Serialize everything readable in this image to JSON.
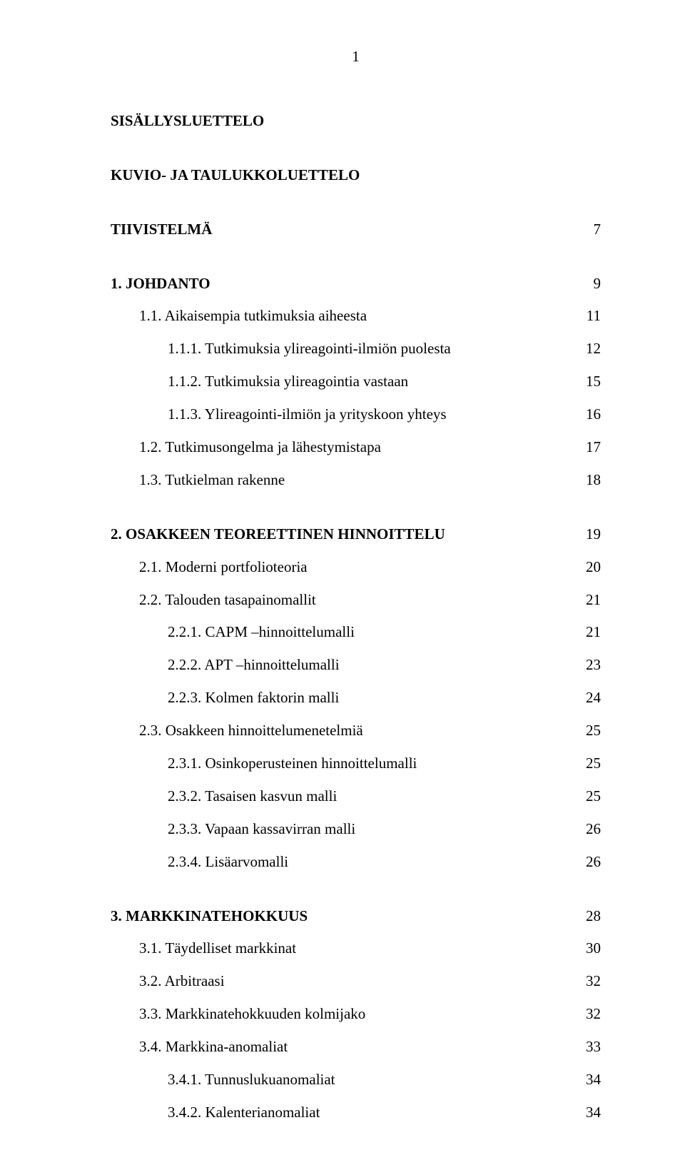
{
  "page_number": "1",
  "headings": {
    "sisallysluettelo": "SISÄLLYSLUETTELO",
    "kuvio": "KUVIO- JA TAULUKKOLUETTELO"
  },
  "tiivistelma": {
    "label": "TIIVISTELMÄ",
    "page": "7"
  },
  "chapters": [
    {
      "label": "1. JOHDANTO",
      "page": "9",
      "bold": true,
      "items": [
        {
          "label": "1.1. Aikaisempia tutkimuksia aiheesta",
          "page": "11",
          "indent": 1
        },
        {
          "label": "1.1.1. Tutkimuksia ylireagointi-ilmiön puolesta",
          "page": "12",
          "indent": 2
        },
        {
          "label": "1.1.2. Tutkimuksia ylireagointia vastaan",
          "page": "15",
          "indent": 2
        },
        {
          "label": "1.1.3. Ylireagointi-ilmiön ja yrityskoon yhteys",
          "page": "16",
          "indent": 2
        },
        {
          "label": "1.2. Tutkimusongelma ja lähestymistapa",
          "page": "17",
          "indent": 1
        },
        {
          "label": "1.3. Tutkielman rakenne",
          "page": "18",
          "indent": 1
        }
      ]
    },
    {
      "label": "2. OSAKKEEN TEOREETTINEN HINNOITTELU",
      "page": "19",
      "bold": true,
      "items": [
        {
          "label": "2.1. Moderni portfolioteoria",
          "page": "20",
          "indent": 1
        },
        {
          "label": "2.2. Talouden tasapainomallit",
          "page": "21",
          "indent": 1
        },
        {
          "label": "2.2.1. CAPM –hinnoittelumalli",
          "page": "21",
          "indent": 2
        },
        {
          "label": "2.2.2. APT –hinnoittelumalli",
          "page": "23",
          "indent": 2
        },
        {
          "label": "2.2.3. Kolmen faktorin malli",
          "page": "24",
          "indent": 2
        },
        {
          "label": "2.3. Osakkeen hinnoittelumenetelmiä",
          "page": "25",
          "indent": 1
        },
        {
          "label": "2.3.1. Osinkoperusteinen hinnoittelumalli",
          "page": "25",
          "indent": 2
        },
        {
          "label": "2.3.2. Tasaisen kasvun malli",
          "page": "25",
          "indent": 2
        },
        {
          "label": "2.3.3. Vapaan kassavirran malli",
          "page": "26",
          "indent": 2
        },
        {
          "label": "2.3.4. Lisäarvomalli",
          "page": "26",
          "indent": 2
        }
      ]
    },
    {
      "label": "3. MARKKINATEHOKKUUS",
      "page": "28",
      "bold": true,
      "items": [
        {
          "label": "3.1. Täydelliset markkinat",
          "page": "30",
          "indent": 1
        },
        {
          "label": "3.2. Arbitraasi",
          "page": "32",
          "indent": 1
        },
        {
          "label": "3.3. Markkinatehokkuuden kolmijako",
          "page": "32",
          "indent": 1
        },
        {
          "label": "3.4. Markkina-anomaliat",
          "page": "33",
          "indent": 1
        },
        {
          "label": "3.4.1. Tunnuslukuanomaliat",
          "page": "34",
          "indent": 2
        },
        {
          "label": "3.4.2. Kalenterianomaliat",
          "page": "34",
          "indent": 2
        }
      ]
    }
  ]
}
